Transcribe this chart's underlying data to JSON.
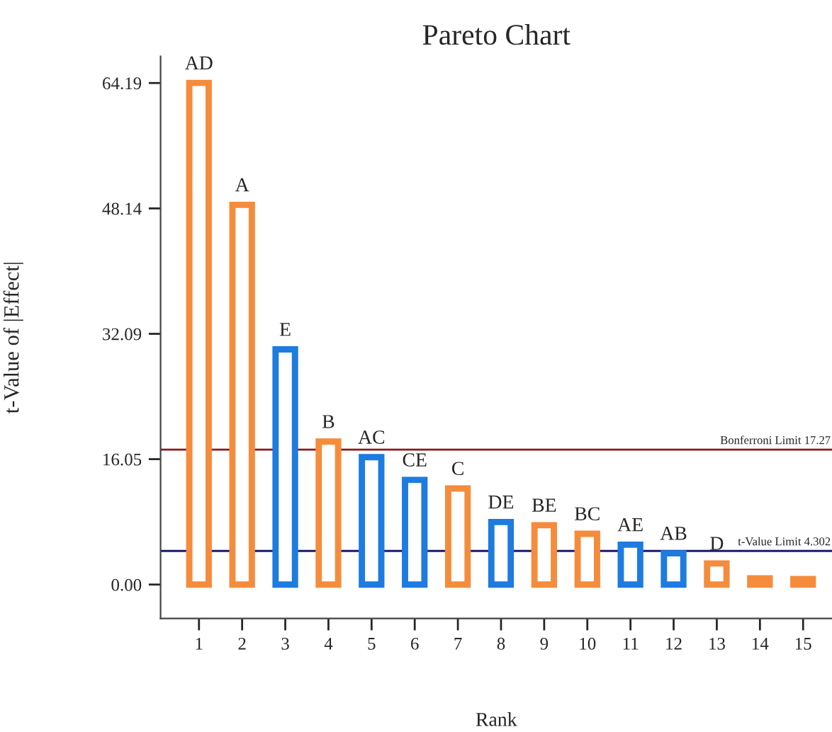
{
  "chart_data": {
    "type": "bar",
    "title": "Pareto Chart",
    "xlabel": "Rank",
    "ylabel": "t-Value of |Effect|",
    "categories": [
      "1",
      "2",
      "3",
      "4",
      "5",
      "6",
      "7",
      "8",
      "9",
      "10",
      "11",
      "12",
      "13",
      "14",
      "15"
    ],
    "values": [
      64.2,
      48.6,
      30.1,
      18.3,
      16.3,
      13.4,
      12.3,
      8.0,
      7.6,
      6.5,
      5.1,
      4.0,
      2.7,
      0.8,
      0.7
    ],
    "colors": [
      "#f58c3c",
      "#f58c3c",
      "#1e7be0",
      "#f58c3c",
      "#1e7be0",
      "#1e7be0",
      "#f58c3c",
      "#1e7be0",
      "#f58c3c",
      "#f58c3c",
      "#1e7be0",
      "#1e7be0",
      "#f58c3c",
      "#f58c3c",
      "#f58c3c"
    ],
    "ylim": [
      -4.35,
      67.6
    ],
    "yticks": [
      {
        "value": 0,
        "label": "0.00"
      },
      {
        "value": 16.05,
        "label": "16.05"
      },
      {
        "value": 32.09,
        "label": "32.09"
      },
      {
        "value": 48.14,
        "label": "48.14"
      },
      {
        "value": 64.19,
        "label": "64.19"
      }
    ],
    "ref_lines": [
      {
        "axis": "y",
        "value": 17.27,
        "label": "Bonferroni Limit 17.27",
        "color": "#8b1a1a"
      },
      {
        "axis": "y",
        "value": 4.302,
        "label": "t-Value Limit 4.302",
        "color": "#1a1a6e"
      }
    ],
    "annotations": [
      {
        "text": "AD",
        "x": "1",
        "y": 64.2
      },
      {
        "text": "A",
        "x": "2",
        "y": 48.6
      },
      {
        "text": "E",
        "x": "3",
        "y": 30.1
      },
      {
        "text": "B",
        "x": "4",
        "y": 18.3
      },
      {
        "text": "AC",
        "x": "5",
        "y": 16.3
      },
      {
        "text": "CE",
        "x": "6",
        "y": 13.4
      },
      {
        "text": "C",
        "x": "7",
        "y": 12.3
      },
      {
        "text": "DE",
        "x": "8",
        "y": 8.0
      },
      {
        "text": "BE",
        "x": "9",
        "y": 7.6
      },
      {
        "text": "BC",
        "x": "10",
        "y": 6.5
      },
      {
        "text": "AE",
        "x": "11",
        "y": 5.1
      },
      {
        "text": "AB",
        "x": "12",
        "y": 4.0
      },
      {
        "text": "D",
        "x": "13",
        "y": 2.7
      }
    ],
    "grid": false
  }
}
